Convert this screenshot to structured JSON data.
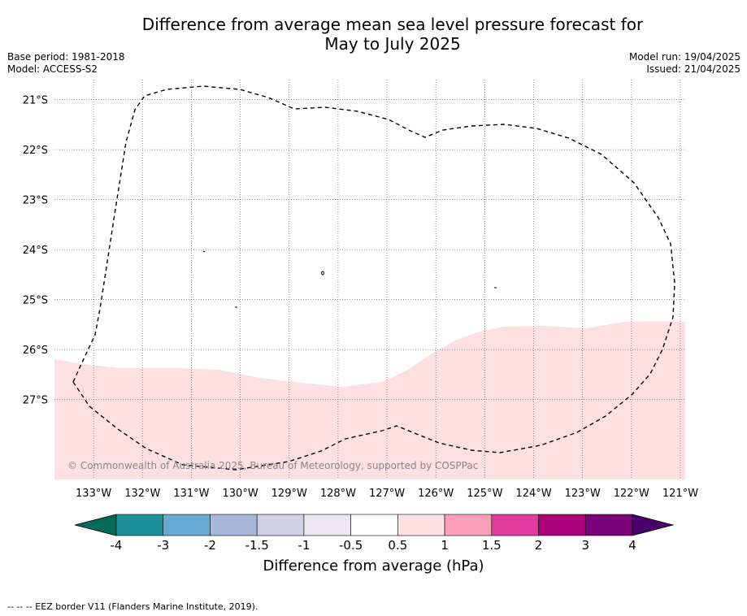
{
  "title": {
    "line1": "Difference from average mean sea level pressure forecast for",
    "line2": "May to July 2025"
  },
  "meta": {
    "base_period": "Base period: 1981-2018",
    "model": "Model: ACCESS-S2",
    "model_run": "Model run: 19/04/2025",
    "issued": "Issued: 21/04/2025"
  },
  "map": {
    "lon_ticks": [
      "133°W",
      "132°W",
      "131°W",
      "130°W",
      "129°W",
      "128°W",
      "127°W",
      "126°W",
      "125°W",
      "124°W",
      "123°W",
      "122°W",
      "121°W"
    ],
    "lat_ticks": [
      "21°S",
      "22°S",
      "23°S",
      "24°S",
      "25°S",
      "26°S",
      "27°S"
    ],
    "lon_range": [
      -133.8,
      -120.9
    ],
    "lat_range": [
      -28.6,
      -20.6
    ],
    "grid": true,
    "region_color": "#fde0df",
    "region_category": "0.5 to 1",
    "copyright": "© Commonwealth of Australia 2025, Bureau of Meteorology, supported by COSPPac"
  },
  "colorbar": {
    "labels": [
      "-4",
      "-3",
      "-2",
      "-1.5",
      "-1",
      "-0.5",
      "0.5",
      "1",
      "1.5",
      "2",
      "3",
      "4"
    ],
    "colors": [
      "#1b9099",
      "#68aad2",
      "#a7b8da",
      "#d0d0e6",
      "#eae8ee",
      "#ffffff",
      "#fde0df",
      "#fba0b9",
      "#e03d9e",
      "#ae017e",
      "#7a0177"
    ],
    "extend_low_color": "#016c59",
    "extend_high_color": "#49006a",
    "title": "Difference from average (hPa)"
  },
  "footnote": "--  --  -- EEZ border V11 (Flanders Marine Institute, 2019)."
}
